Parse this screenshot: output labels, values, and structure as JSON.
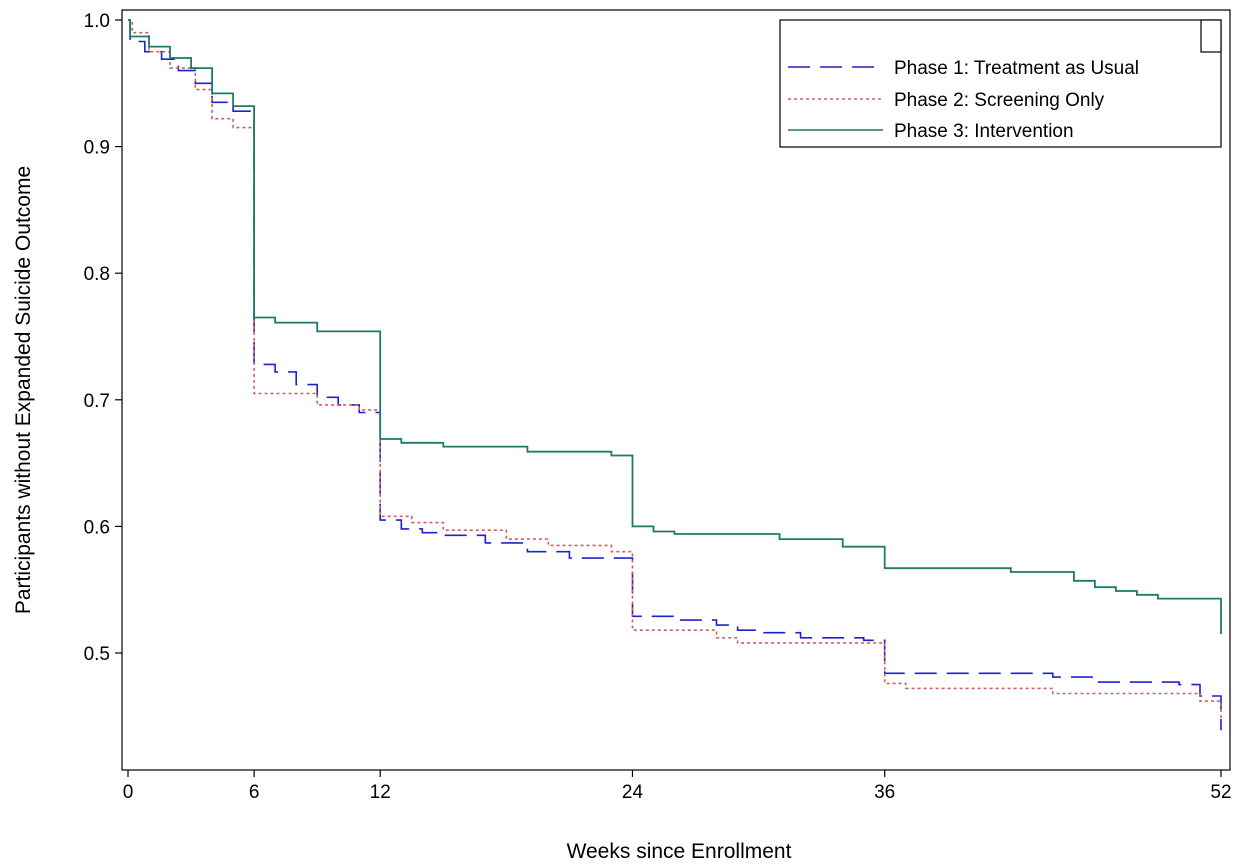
{
  "chart_data": {
    "type": "line",
    "step": true,
    "title": "",
    "xlabel": "Weeks since Enrollment",
    "ylabel": "Participants without Expanded Suicide Outcome",
    "xlim": [
      0,
      52
    ],
    "ylim": [
      0.41,
      1.0
    ],
    "xticks": [
      0,
      6,
      12,
      24,
      36,
      52
    ],
    "xtick_labels": [
      "0",
      "6",
      "12",
      "24",
      "36",
      "52"
    ],
    "yticks": [
      0.5,
      0.6,
      0.7,
      0.8,
      0.9,
      1.0
    ],
    "ytick_labels": [
      "0.5",
      "0.6",
      "0.7",
      "0.8",
      "0.9",
      "1.0"
    ],
    "grid": false,
    "legend_position": "top-right",
    "series": [
      {
        "name": "Phase 1: Treatment as Usual",
        "color": "#2020d0",
        "dash": "dashed",
        "x": [
          0,
          0.1,
          0.8,
          1.6,
          2.4,
          3.2,
          4.0,
          5.0,
          6.0,
          6.0,
          7.0,
          8.0,
          9.0,
          10.0,
          11.0,
          12.0,
          12.0,
          13.0,
          14.0,
          15.0,
          17.0,
          19.0,
          21.0,
          24.0,
          24.0,
          26.0,
          28.0,
          29.0,
          30.0,
          32.0,
          35.0,
          36.0,
          36.0,
          44.0,
          46.0,
          50.0,
          51.0,
          52.0,
          52.0
        ],
        "y": [
          1.0,
          0.983,
          0.975,
          0.969,
          0.96,
          0.95,
          0.935,
          0.928,
          0.928,
          0.728,
          0.722,
          0.712,
          0.702,
          0.696,
          0.69,
          0.689,
          0.605,
          0.598,
          0.595,
          0.593,
          0.587,
          0.58,
          0.575,
          0.574,
          0.529,
          0.526,
          0.522,
          0.518,
          0.516,
          0.512,
          0.51,
          0.508,
          0.484,
          0.481,
          0.477,
          0.475,
          0.466,
          0.466,
          0.439
        ]
      },
      {
        "name": "Phase 2: Screening Only",
        "color": "#d06060",
        "dash": "dotted",
        "x": [
          0,
          0.2,
          1.0,
          2.0,
          3.2,
          4.0,
          5.0,
          6.0,
          6.0,
          9.0,
          11.0,
          12.0,
          12.0,
          13.5,
          15.0,
          18.0,
          20.0,
          23.0,
          24.0,
          24.0,
          28.0,
          29.0,
          36.0,
          36.0,
          37.0,
          44.0,
          51.0,
          52.0,
          52.0
        ],
        "y": [
          1.0,
          0.99,
          0.975,
          0.962,
          0.945,
          0.922,
          0.915,
          0.915,
          0.705,
          0.696,
          0.692,
          0.69,
          0.608,
          0.603,
          0.597,
          0.59,
          0.585,
          0.58,
          0.578,
          0.518,
          0.512,
          0.508,
          0.508,
          0.476,
          0.472,
          0.468,
          0.462,
          0.462,
          0.447
        ]
      },
      {
        "name": "Phase 3: Intervention",
        "color": "#1e7a6a",
        "dash": "solid",
        "x": [
          0,
          0.1,
          1.0,
          2.0,
          3.0,
          4.0,
          5.0,
          6.0,
          6.0,
          7.0,
          9.0,
          12.0,
          12.0,
          13.0,
          15.0,
          19.0,
          23.0,
          24.0,
          24.0,
          25.0,
          26.0,
          31.0,
          34.0,
          36.0,
          36.0,
          42.0,
          45.0,
          46.0,
          47.0,
          48.0,
          49.0,
          52.0,
          52.0
        ],
        "y": [
          1.0,
          0.987,
          0.979,
          0.97,
          0.962,
          0.942,
          0.932,
          0.93,
          0.765,
          0.761,
          0.754,
          0.754,
          0.669,
          0.666,
          0.663,
          0.659,
          0.656,
          0.655,
          0.6,
          0.596,
          0.594,
          0.59,
          0.584,
          0.584,
          0.567,
          0.564,
          0.557,
          0.552,
          0.549,
          0.546,
          0.543,
          0.543,
          0.515
        ]
      }
    ]
  }
}
